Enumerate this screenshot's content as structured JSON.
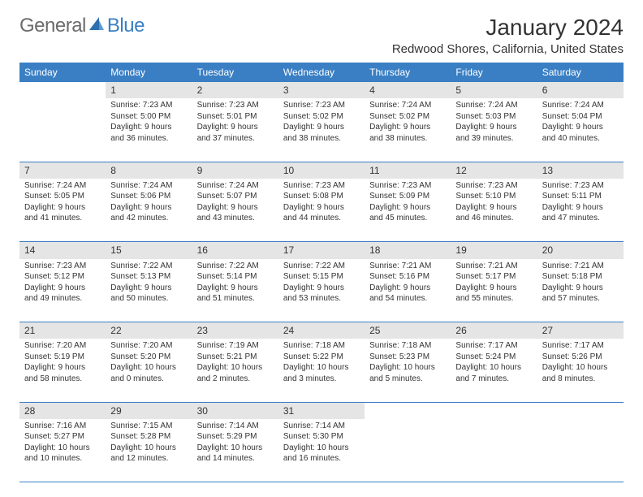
{
  "brand": {
    "part1": "General",
    "part2": "Blue"
  },
  "title": "January 2024",
  "location": "Redwood Shores, California, United States",
  "colors": {
    "header_bg": "#3a7fc4",
    "header_fg": "#ffffff",
    "daynum_bg": "#e5e5e5",
    "text": "#333333",
    "logo_gray": "#6b6b6b",
    "logo_blue": "#3a7fc4",
    "page_bg": "#ffffff",
    "row_divider": "#3a7fc4"
  },
  "typography": {
    "title_fontsize": 28,
    "location_fontsize": 15,
    "dayheader_fontsize": 12,
    "daynum_fontsize": 12,
    "body_fontsize": 10,
    "logo_fontsize": 24
  },
  "layout": {
    "columns": 7,
    "rows": 5,
    "first_day_column_index": 1,
    "days_in_month": 31
  },
  "day_headers": [
    "Sunday",
    "Monday",
    "Tuesday",
    "Wednesday",
    "Thursday",
    "Friday",
    "Saturday"
  ],
  "days": [
    {
      "n": 1,
      "sunrise": "7:23 AM",
      "sunset": "5:00 PM",
      "daylight": "9 hours and 36 minutes."
    },
    {
      "n": 2,
      "sunrise": "7:23 AM",
      "sunset": "5:01 PM",
      "daylight": "9 hours and 37 minutes."
    },
    {
      "n": 3,
      "sunrise": "7:23 AM",
      "sunset": "5:02 PM",
      "daylight": "9 hours and 38 minutes."
    },
    {
      "n": 4,
      "sunrise": "7:24 AM",
      "sunset": "5:02 PM",
      "daylight": "9 hours and 38 minutes."
    },
    {
      "n": 5,
      "sunrise": "7:24 AM",
      "sunset": "5:03 PM",
      "daylight": "9 hours and 39 minutes."
    },
    {
      "n": 6,
      "sunrise": "7:24 AM",
      "sunset": "5:04 PM",
      "daylight": "9 hours and 40 minutes."
    },
    {
      "n": 7,
      "sunrise": "7:24 AM",
      "sunset": "5:05 PM",
      "daylight": "9 hours and 41 minutes."
    },
    {
      "n": 8,
      "sunrise": "7:24 AM",
      "sunset": "5:06 PM",
      "daylight": "9 hours and 42 minutes."
    },
    {
      "n": 9,
      "sunrise": "7:24 AM",
      "sunset": "5:07 PM",
      "daylight": "9 hours and 43 minutes."
    },
    {
      "n": 10,
      "sunrise": "7:23 AM",
      "sunset": "5:08 PM",
      "daylight": "9 hours and 44 minutes."
    },
    {
      "n": 11,
      "sunrise": "7:23 AM",
      "sunset": "5:09 PM",
      "daylight": "9 hours and 45 minutes."
    },
    {
      "n": 12,
      "sunrise": "7:23 AM",
      "sunset": "5:10 PM",
      "daylight": "9 hours and 46 minutes."
    },
    {
      "n": 13,
      "sunrise": "7:23 AM",
      "sunset": "5:11 PM",
      "daylight": "9 hours and 47 minutes."
    },
    {
      "n": 14,
      "sunrise": "7:23 AM",
      "sunset": "5:12 PM",
      "daylight": "9 hours and 49 minutes."
    },
    {
      "n": 15,
      "sunrise": "7:22 AM",
      "sunset": "5:13 PM",
      "daylight": "9 hours and 50 minutes."
    },
    {
      "n": 16,
      "sunrise": "7:22 AM",
      "sunset": "5:14 PM",
      "daylight": "9 hours and 51 minutes."
    },
    {
      "n": 17,
      "sunrise": "7:22 AM",
      "sunset": "5:15 PM",
      "daylight": "9 hours and 53 minutes."
    },
    {
      "n": 18,
      "sunrise": "7:21 AM",
      "sunset": "5:16 PM",
      "daylight": "9 hours and 54 minutes."
    },
    {
      "n": 19,
      "sunrise": "7:21 AM",
      "sunset": "5:17 PM",
      "daylight": "9 hours and 55 minutes."
    },
    {
      "n": 20,
      "sunrise": "7:21 AM",
      "sunset": "5:18 PM",
      "daylight": "9 hours and 57 minutes."
    },
    {
      "n": 21,
      "sunrise": "7:20 AM",
      "sunset": "5:19 PM",
      "daylight": "9 hours and 58 minutes."
    },
    {
      "n": 22,
      "sunrise": "7:20 AM",
      "sunset": "5:20 PM",
      "daylight": "10 hours and 0 minutes."
    },
    {
      "n": 23,
      "sunrise": "7:19 AM",
      "sunset": "5:21 PM",
      "daylight": "10 hours and 2 minutes."
    },
    {
      "n": 24,
      "sunrise": "7:18 AM",
      "sunset": "5:22 PM",
      "daylight": "10 hours and 3 minutes."
    },
    {
      "n": 25,
      "sunrise": "7:18 AM",
      "sunset": "5:23 PM",
      "daylight": "10 hours and 5 minutes."
    },
    {
      "n": 26,
      "sunrise": "7:17 AM",
      "sunset": "5:24 PM",
      "daylight": "10 hours and 7 minutes."
    },
    {
      "n": 27,
      "sunrise": "7:17 AM",
      "sunset": "5:26 PM",
      "daylight": "10 hours and 8 minutes."
    },
    {
      "n": 28,
      "sunrise": "7:16 AM",
      "sunset": "5:27 PM",
      "daylight": "10 hours and 10 minutes."
    },
    {
      "n": 29,
      "sunrise": "7:15 AM",
      "sunset": "5:28 PM",
      "daylight": "10 hours and 12 minutes."
    },
    {
      "n": 30,
      "sunrise": "7:14 AM",
      "sunset": "5:29 PM",
      "daylight": "10 hours and 14 minutes."
    },
    {
      "n": 31,
      "sunrise": "7:14 AM",
      "sunset": "5:30 PM",
      "daylight": "10 hours and 16 minutes."
    }
  ],
  "labels": {
    "sunrise_prefix": "Sunrise: ",
    "sunset_prefix": "Sunset: ",
    "daylight_prefix": "Daylight: "
  }
}
